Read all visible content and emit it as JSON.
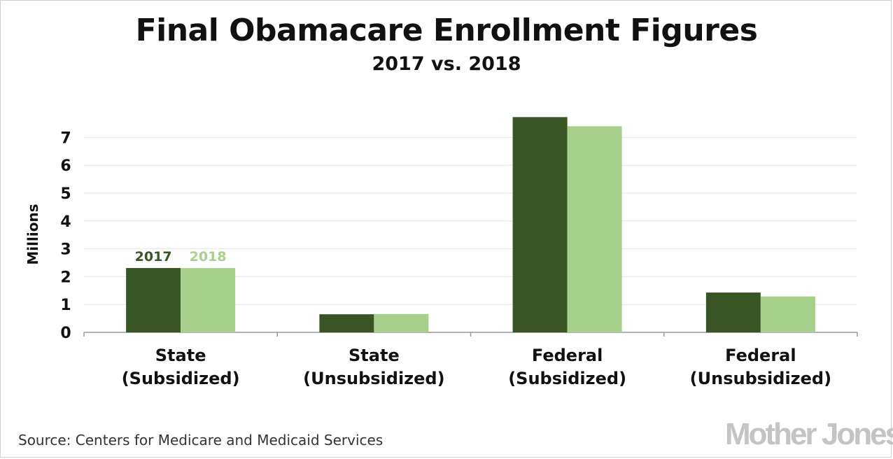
{
  "title": "Final Obamacare Enrollment Figures",
  "subtitle": "2017 vs. 2018",
  "source": "Source: Centers for Medicare and Medicaid Services",
  "logo": "Mother Jones",
  "colors": {
    "series_2017": "#3a5524",
    "series_2018": "#a8d08d",
    "grid": "#e6e6e6",
    "axis": "#999999"
  },
  "chart_data": {
    "type": "bar",
    "title": "Final Obamacare Enrollment Figures",
    "subtitle": "2017 vs. 2018",
    "xlabel": "",
    "ylabel": "Millions",
    "ylim": [
      0,
      7.5
    ],
    "yticks": [
      0,
      1,
      2,
      3,
      4,
      5,
      6,
      7
    ],
    "grid": true,
    "legend": "inline labels above first category",
    "categories": [
      [
        "State",
        "(Subsidized)"
      ],
      [
        "State",
        "(Unsubsidized)"
      ],
      [
        "Federal",
        "(Subsidized)"
      ],
      [
        "Federal",
        "(Unsubsidized)"
      ]
    ],
    "series": [
      {
        "name": "2017",
        "values": [
          2.31,
          0.65,
          7.73,
          1.43
        ]
      },
      {
        "name": "2018",
        "values": [
          2.31,
          0.66,
          7.4,
          1.29
        ]
      }
    ]
  }
}
